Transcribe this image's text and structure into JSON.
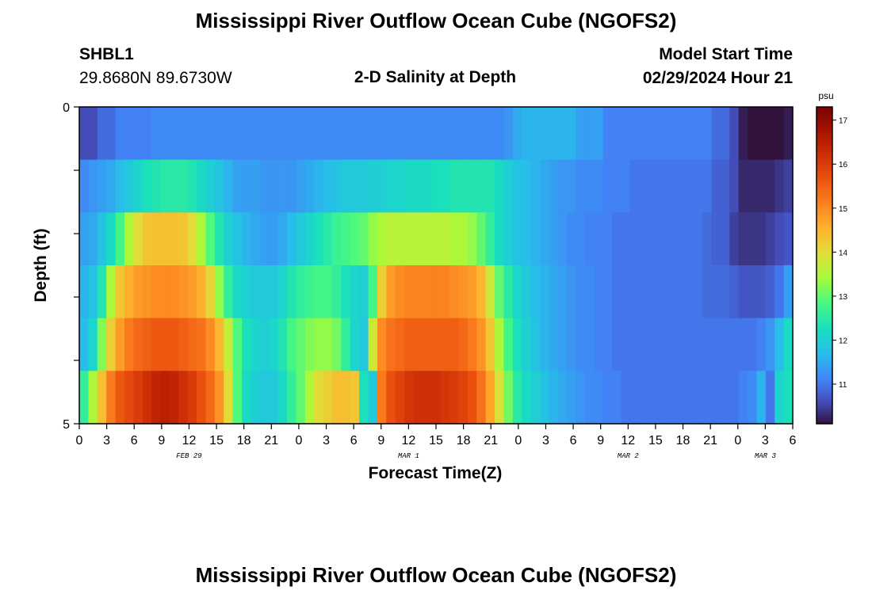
{
  "header": {
    "title": "Mississippi River Outflow Ocean Cube (NGOFS2)",
    "station": "SHBL1",
    "coords": "29.8680N  89.6730W",
    "subtitle": "2-D Salinity at Depth",
    "model_label": "Model Start Time",
    "model_time": "02/29/2024 Hour 21"
  },
  "footer": {
    "title": "Mississippi River Outflow Ocean Cube (NGOFS2)"
  },
  "chart_data": {
    "type": "heatmap",
    "title": "2-D Salinity at Depth",
    "xlabel": "Forecast Time(Z)",
    "ylabel": "Depth (ft)",
    "x_hours": [
      0,
      1,
      2,
      3,
      4,
      5,
      6,
      7,
      8,
      9,
      10,
      11,
      12,
      13,
      14,
      15,
      16,
      17,
      18,
      19,
      20,
      21,
      22,
      23,
      24,
      25,
      26,
      27,
      28,
      29,
      30,
      31,
      32,
      33,
      34,
      35,
      36,
      37,
      38,
      39,
      40,
      41,
      42,
      43,
      44,
      45,
      46,
      47,
      48,
      49,
      50,
      51,
      52,
      53,
      54,
      55,
      56,
      57,
      58,
      59,
      60,
      61,
      62,
      63,
      64,
      65,
      66,
      67,
      68,
      69,
      70,
      71,
      72,
      73,
      74,
      75,
      76,
      77,
      78
    ],
    "x_tick_labels": [
      "0",
      "3",
      "6",
      "9",
      "12",
      "15",
      "18",
      "21",
      "0",
      "3",
      "6",
      "9",
      "12",
      "15",
      "18",
      "21",
      "0",
      "3",
      "6",
      "9",
      "12",
      "15",
      "18",
      "21",
      "0",
      "3",
      "6"
    ],
    "day_labels": [
      {
        "label": "FEB 29",
        "hour": 12
      },
      {
        "label": "MAR 1",
        "hour": 36
      },
      {
        "label": "MAR 2",
        "hour": 60
      },
      {
        "label": "MAR 3",
        "hour": 75
      }
    ],
    "y_tick_labels": [
      "0",
      "5"
    ],
    "depth_range": [
      0,
      5
    ],
    "layers": 5,
    "colorbar": {
      "unit": "psu",
      "ticks": [
        11,
        12,
        13,
        14,
        15,
        16,
        17
      ],
      "range": [
        10.1,
        17.3
      ]
    },
    "values": [
      [
        10.6,
        10.6,
        10.9,
        10.9,
        11.1,
        11.1,
        11.1,
        11.1,
        11.2,
        11.2,
        11.2,
        11.2,
        11.2,
        11.2,
        11.2,
        11.2,
        11.2,
        11.2,
        11.2,
        11.2,
        11.2,
        11.2,
        11.2,
        11.2,
        11.2,
        11.2,
        11.2,
        11.2,
        11.2,
        11.2,
        11.2,
        11.2,
        11.2,
        11.2,
        11.2,
        11.2,
        11.2,
        11.2,
        11.2,
        11.2,
        11.2,
        11.2,
        11.2,
        11.2,
        11.2,
        11.2,
        11.2,
        11.3,
        11.5,
        11.6,
        11.6,
        11.6,
        11.6,
        11.6,
        11.6,
        11.4,
        11.4,
        11.4,
        11.1,
        11.1,
        11.1,
        11.1,
        11.1,
        11.1,
        11.1,
        11.1,
        11.1,
        11.1,
        11.1,
        11.1,
        10.9,
        10.9,
        10.6,
        10.2,
        10.1,
        10.1,
        10.1,
        10.1,
        10.2
      ],
      [
        11.2,
        11.3,
        11.4,
        11.5,
        11.7,
        11.9,
        12.1,
        12.3,
        12.4,
        12.5,
        12.5,
        12.5,
        12.4,
        12.2,
        12.0,
        11.8,
        11.6,
        11.4,
        11.4,
        11.4,
        11.3,
        11.3,
        11.3,
        11.3,
        11.4,
        11.5,
        11.6,
        11.7,
        11.8,
        11.9,
        11.9,
        11.9,
        12.0,
        12.0,
        12.1,
        12.1,
        12.2,
        12.2,
        12.2,
        12.3,
        12.3,
        12.4,
        12.4,
        12.4,
        12.4,
        12.4,
        12.2,
        12.0,
        11.8,
        11.7,
        11.6,
        11.5,
        11.4,
        11.3,
        11.3,
        11.2,
        11.2,
        11.2,
        11.1,
        11.1,
        11.1,
        11.0,
        11.0,
        11.0,
        11.0,
        11.0,
        11.0,
        11.0,
        11.0,
        11.0,
        10.8,
        10.8,
        10.6,
        10.3,
        10.3,
        10.3,
        10.3,
        10.4,
        10.5
      ],
      [
        11.4,
        11.5,
        11.8,
        12.2,
        12.8,
        13.5,
        14.0,
        14.3,
        14.4,
        14.4,
        14.4,
        14.3,
        14.0,
        13.5,
        12.9,
        12.4,
        12.0,
        11.8,
        11.6,
        11.5,
        11.4,
        11.4,
        11.5,
        11.7,
        11.9,
        12.1,
        12.3,
        12.5,
        12.7,
        12.8,
        12.9,
        13.0,
        13.3,
        13.5,
        13.6,
        13.6,
        13.6,
        13.6,
        13.6,
        13.6,
        13.6,
        13.5,
        13.5,
        13.3,
        13.0,
        12.6,
        12.2,
        12.0,
        11.8,
        11.7,
        11.6,
        11.5,
        11.4,
        11.3,
        11.2,
        11.2,
        11.1,
        11.1,
        11.1,
        11.0,
        11.0,
        11.0,
        11.0,
        11.0,
        11.0,
        11.0,
        11.0,
        11.0,
        11.0,
        10.9,
        10.8,
        10.8,
        10.5,
        10.4,
        10.4,
        10.4,
        10.5,
        10.6,
        10.7
      ],
      [
        11.6,
        11.8,
        12.4,
        13.5,
        14.3,
        14.6,
        14.8,
        14.9,
        15.0,
        15.0,
        15.0,
        14.9,
        14.8,
        14.6,
        14.1,
        13.3,
        12.6,
        12.2,
        12.0,
        11.9,
        11.9,
        11.9,
        12.1,
        12.4,
        12.6,
        12.7,
        12.8,
        12.8,
        12.6,
        12.3,
        12.1,
        12.0,
        12.8,
        14.2,
        14.8,
        15.0,
        15.1,
        15.1,
        15.1,
        15.1,
        15.1,
        15.0,
        14.9,
        14.8,
        14.5,
        13.8,
        13.0,
        12.5,
        12.1,
        11.9,
        11.7,
        11.6,
        11.5,
        11.4,
        11.3,
        11.2,
        11.2,
        11.1,
        11.1,
        11.0,
        11.0,
        11.0,
        11.0,
        11.0,
        11.0,
        11.0,
        11.0,
        11.0,
        11.0,
        10.9,
        10.9,
        10.9,
        10.8,
        10.7,
        10.7,
        10.7,
        10.8,
        11.0,
        11.4
      ],
      [
        11.7,
        12.1,
        13.2,
        14.2,
        14.8,
        15.2,
        15.4,
        15.5,
        15.6,
        15.6,
        15.6,
        15.5,
        15.4,
        15.3,
        15.0,
        14.5,
        13.7,
        12.9,
        12.3,
        12.1,
        12.0,
        12.1,
        12.4,
        12.8,
        13.0,
        13.2,
        13.3,
        13.3,
        13.1,
        12.6,
        12.1,
        11.9,
        13.8,
        15.0,
        15.3,
        15.4,
        15.5,
        15.5,
        15.5,
        15.5,
        15.5,
        15.5,
        15.4,
        15.2,
        14.9,
        14.3,
        13.5,
        12.8,
        12.3,
        12.0,
        11.8,
        11.6,
        11.5,
        11.4,
        11.3,
        11.2,
        11.2,
        11.1,
        11.1,
        11.0,
        11.0,
        11.0,
        11.0,
        11.0,
        11.0,
        11.0,
        11.0,
        11.0,
        11.0,
        11.0,
        11.0,
        11.0,
        11.0,
        11.0,
        11.0,
        11.1,
        11.3,
        11.7,
        12.2
      ],
      [
        12.6,
        13.5,
        14.4,
        15.2,
        15.6,
        15.8,
        16.0,
        16.2,
        16.4,
        16.5,
        16.4,
        16.2,
        16.0,
        15.7,
        15.4,
        14.9,
        14.0,
        12.9,
        12.2,
        12.0,
        11.9,
        11.9,
        12.2,
        12.6,
        13.0,
        13.5,
        14.0,
        14.2,
        14.4,
        14.4,
        14.3,
        12.3,
        11.9,
        15.2,
        15.7,
        15.9,
        16.1,
        16.2,
        16.2,
        16.2,
        16.1,
        16.0,
        15.9,
        15.7,
        15.3,
        14.7,
        13.9,
        13.1,
        12.5,
        12.2,
        12.0,
        11.8,
        11.6,
        11.5,
        11.4,
        11.3,
        11.2,
        11.2,
        11.1,
        11.1,
        11.0,
        11.0,
        11.0,
        11.0,
        11.0,
        11.0,
        11.0,
        11.0,
        11.0,
        11.0,
        11.0,
        11.0,
        11.0,
        11.1,
        11.2,
        11.6,
        11.0,
        12.1,
        12.3
      ]
    ]
  }
}
